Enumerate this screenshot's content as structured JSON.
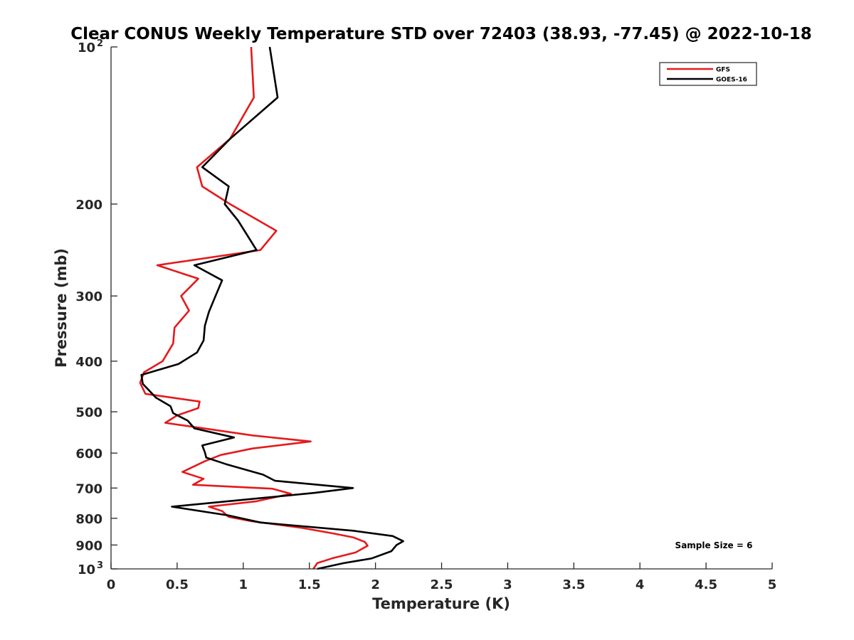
{
  "chart_data": {
    "type": "line",
    "title": "Clear CONUS Weekly Temperature STD over 72403 (38.93, -77.45) @ 2022-10-18",
    "xlabel": "Temperature (K)",
    "ylabel": "Pressure (mb)",
    "xlim": [
      0,
      5
    ],
    "ylim": [
      1000,
      100
    ],
    "y_scale": "log",
    "y_reversed": true,
    "xticks": [
      {
        "value": 0,
        "label": "0"
      },
      {
        "value": 0.5,
        "label": "0.5"
      },
      {
        "value": 1,
        "label": "1"
      },
      {
        "value": 1.5,
        "label": "1.5"
      },
      {
        "value": 2,
        "label": "2"
      },
      {
        "value": 2.5,
        "label": "2.5"
      },
      {
        "value": 3,
        "label": "3"
      },
      {
        "value": 3.5,
        "label": "3.5"
      },
      {
        "value": 4,
        "label": "4"
      },
      {
        "value": 4.5,
        "label": "4.5"
      },
      {
        "value": 5,
        "label": "5"
      }
    ],
    "yticks": [
      {
        "value": 100,
        "base": "10",
        "exp": "2"
      },
      {
        "value": 200,
        "base": "200",
        "exp": ""
      },
      {
        "value": 300,
        "base": "300",
        "exp": ""
      },
      {
        "value": 400,
        "base": "400",
        "exp": ""
      },
      {
        "value": 500,
        "base": "500",
        "exp": ""
      },
      {
        "value": 600,
        "base": "600",
        "exp": ""
      },
      {
        "value": 700,
        "base": "700",
        "exp": ""
      },
      {
        "value": 800,
        "base": "800",
        "exp": ""
      },
      {
        "value": 900,
        "base": "900",
        "exp": ""
      },
      {
        "value": 1000,
        "base": "10",
        "exp": "3"
      }
    ],
    "grid": false,
    "legend_position": "top-right",
    "series": [
      {
        "name": "GFS",
        "color": "#e41a1c",
        "points": [
          [
            1.06,
            100
          ],
          [
            1.08,
            125
          ],
          [
            0.9,
            150
          ],
          [
            0.65,
            170
          ],
          [
            0.69,
            185
          ],
          [
            0.9,
            200
          ],
          [
            1.25,
            225
          ],
          [
            1.13,
            245
          ],
          [
            0.35,
            262
          ],
          [
            0.66,
            278
          ],
          [
            0.53,
            300
          ],
          [
            0.59,
            320
          ],
          [
            0.48,
            345
          ],
          [
            0.47,
            370
          ],
          [
            0.39,
            400
          ],
          [
            0.25,
            420
          ],
          [
            0.22,
            440
          ],
          [
            0.26,
            462
          ],
          [
            0.67,
            478
          ],
          [
            0.66,
            492
          ],
          [
            0.5,
            508
          ],
          [
            0.41,
            525
          ],
          [
            1.07,
            555
          ],
          [
            1.51,
            570
          ],
          [
            1.07,
            588
          ],
          [
            0.83,
            605
          ],
          [
            0.71,
            622
          ],
          [
            0.54,
            652
          ],
          [
            0.7,
            672
          ],
          [
            0.62,
            690
          ],
          [
            1.22,
            702
          ],
          [
            1.36,
            718
          ],
          [
            1.1,
            742
          ],
          [
            0.74,
            760
          ],
          [
            0.84,
            775
          ],
          [
            0.89,
            795
          ],
          [
            1.06,
            810
          ],
          [
            1.45,
            835
          ],
          [
            1.68,
            855
          ],
          [
            1.83,
            870
          ],
          [
            1.92,
            888
          ],
          [
            1.94,
            903
          ],
          [
            1.85,
            930
          ],
          [
            1.67,
            955
          ],
          [
            1.56,
            975
          ],
          [
            1.53,
            1000
          ]
        ]
      },
      {
        "name": "GOES-16",
        "color": "#000000",
        "points": [
          [
            1.2,
            100
          ],
          [
            1.26,
            125
          ],
          [
            0.9,
            150
          ],
          [
            0.69,
            170
          ],
          [
            0.89,
            185
          ],
          [
            0.86,
            200
          ],
          [
            0.96,
            215
          ],
          [
            1.1,
            245
          ],
          [
            0.63,
            262
          ],
          [
            0.84,
            280
          ],
          [
            0.79,
            300
          ],
          [
            0.74,
            322
          ],
          [
            0.71,
            342
          ],
          [
            0.7,
            365
          ],
          [
            0.65,
            385
          ],
          [
            0.51,
            405
          ],
          [
            0.23,
            425
          ],
          [
            0.24,
            442
          ],
          [
            0.34,
            470
          ],
          [
            0.45,
            488
          ],
          [
            0.47,
            503
          ],
          [
            0.58,
            520
          ],
          [
            0.63,
            538
          ],
          [
            0.93,
            560
          ],
          [
            0.69,
            580
          ],
          [
            0.71,
            598
          ],
          [
            0.72,
            612
          ],
          [
            0.87,
            630
          ],
          [
            1.15,
            660
          ],
          [
            1.24,
            678
          ],
          [
            1.83,
            700
          ],
          [
            1.54,
            715
          ],
          [
            0.46,
            760
          ],
          [
            0.89,
            790
          ],
          [
            1.13,
            815
          ],
          [
            1.83,
            845
          ],
          [
            2.13,
            865
          ],
          [
            2.21,
            885
          ],
          [
            2.16,
            900
          ],
          [
            2.12,
            925
          ],
          [
            1.97,
            955
          ],
          [
            1.76,
            975
          ],
          [
            1.56,
            1000
          ]
        ]
      }
    ],
    "annotations": [
      {
        "text": "Sample Size = 6"
      }
    ]
  }
}
